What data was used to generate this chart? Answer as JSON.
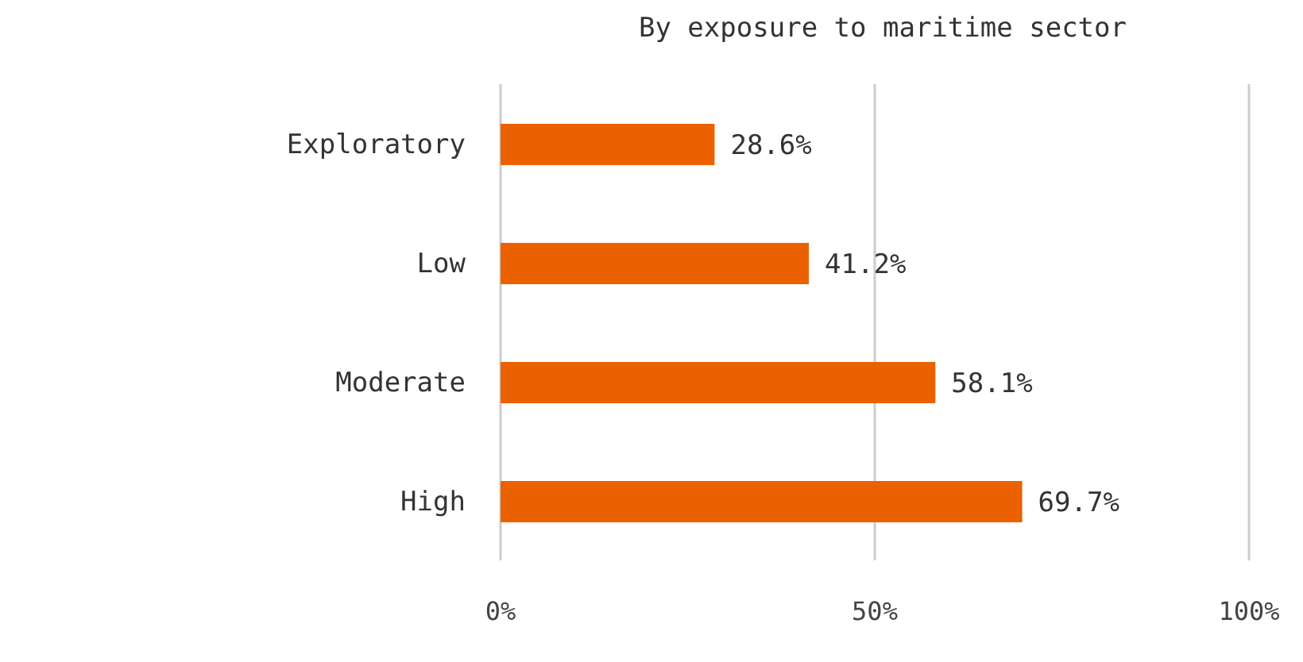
{
  "chart_data": {
    "type": "bar",
    "orientation": "horizontal",
    "title": "By exposure to maritime sector",
    "categories": [
      "Exploratory",
      "Low",
      "Moderate",
      "High"
    ],
    "values": [
      28.6,
      41.2,
      58.1,
      69.7
    ],
    "value_labels": [
      "28.6%",
      "41.2%",
      "58.1%",
      "69.7%"
    ],
    "color": "#eb6100",
    "xlim": [
      0,
      100
    ],
    "xticks": [
      {
        "value": 0,
        "label": "0%"
      },
      {
        "value": 50,
        "label": "50%"
      },
      {
        "value": 100,
        "label": "100%"
      }
    ],
    "grid": "x"
  }
}
